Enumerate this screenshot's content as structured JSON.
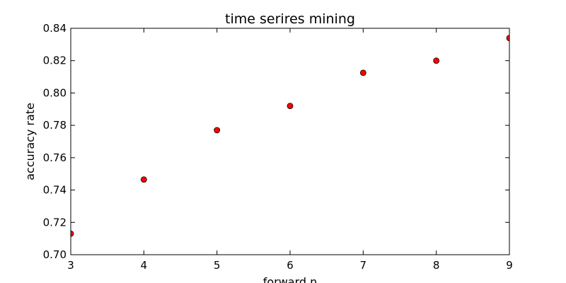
{
  "chart_data": {
    "type": "scatter",
    "title": "time serires mining",
    "xlabel": "forward n",
    "ylabel": "accuracy rate",
    "xlim": [
      3,
      9
    ],
    "ylim": [
      0.7,
      0.84
    ],
    "x_ticks": [
      "3",
      "4",
      "5",
      "6",
      "7",
      "8",
      "9"
    ],
    "y_ticks": [
      "0.70",
      "0.72",
      "0.74",
      "0.76",
      "0.78",
      "0.80",
      "0.82",
      "0.84"
    ],
    "grid": false,
    "legend": "none",
    "marker_color": "#ff0000",
    "marker_edge_color": "#000000",
    "series": [
      {
        "points": [
          {
            "x": 3,
            "y": 0.713
          },
          {
            "x": 4,
            "y": 0.7465
          },
          {
            "x": 5,
            "y": 0.777
          },
          {
            "x": 6,
            "y": 0.792
          },
          {
            "x": 7,
            "y": 0.8125
          },
          {
            "x": 8,
            "y": 0.82
          },
          {
            "x": 9,
            "y": 0.834
          }
        ]
      }
    ]
  }
}
